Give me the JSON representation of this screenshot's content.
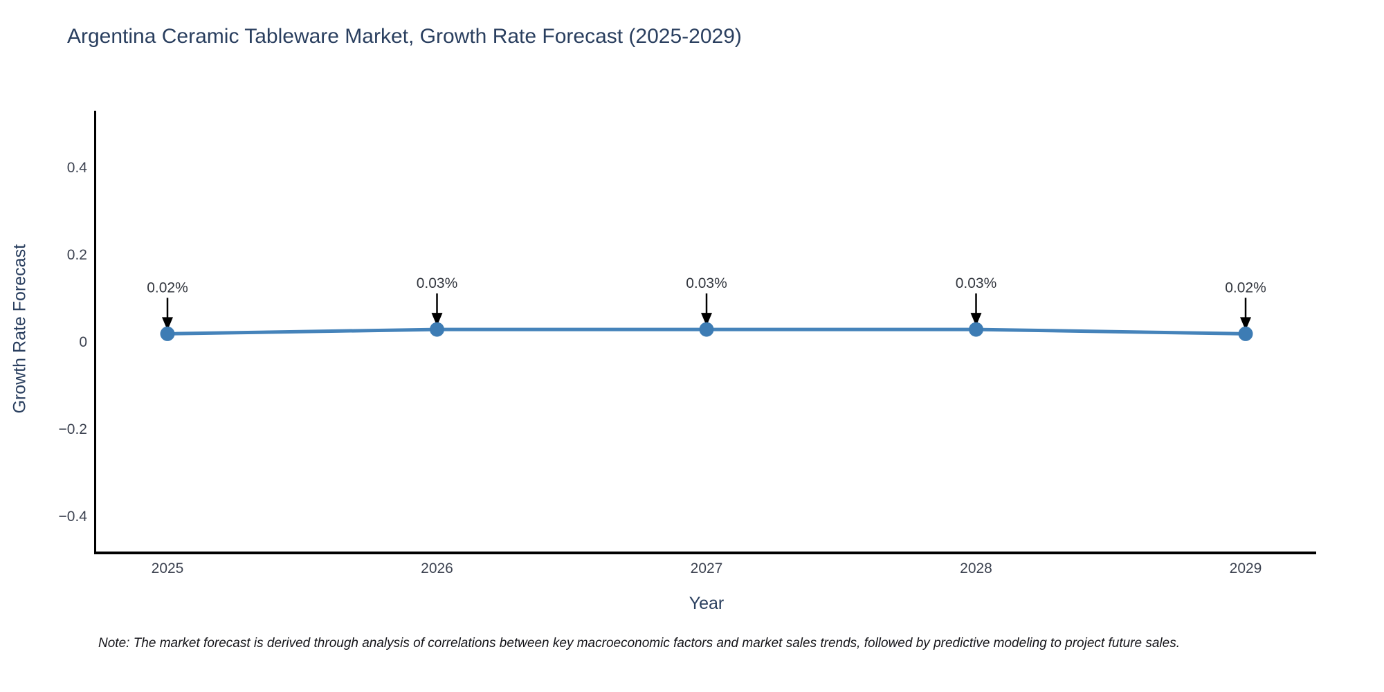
{
  "title": "Argentina Ceramic Tableware Market, Growth Rate Forecast (2025-2029)",
  "note": "Note: The market forecast is derived through analysis of correlations between key macroeconomic factors and market sales trends, followed by predictive modeling to project future sales.",
  "chart_data": {
    "type": "line",
    "title": "Argentina Ceramic Tableware Market, Growth Rate Forecast (2025-2029)",
    "xlabel": "Year",
    "ylabel": "Growth Rate Forecast",
    "categories": [
      "2025",
      "2026",
      "2027",
      "2028",
      "2029"
    ],
    "series": [
      {
        "name": "Growth Rate Forecast",
        "values": [
          0.02,
          0.03,
          0.03,
          0.03,
          0.02
        ],
        "point_labels": [
          "0.02%",
          "0.03%",
          "0.03%",
          "0.03%",
          "0.02%"
        ]
      }
    ],
    "yticks": [
      {
        "label": "0.4",
        "value": 0.4
      },
      {
        "label": "0.2",
        "value": 0.2
      },
      {
        "label": "0",
        "value": 0
      },
      {
        "label": "−0.2",
        "value": -0.2
      },
      {
        "label": "−0.4",
        "value": -0.4
      }
    ],
    "ylim": [
      -0.51,
      0.53
    ],
    "grid": false,
    "legend_position": "none",
    "colors": {
      "line": "#4583ba",
      "marker": "#3d7cb4",
      "annotation_arrow": "#000000",
      "annotation_text": "#33373f",
      "axis": "#000000",
      "title_text": "#2a3f5f",
      "tick_text": "#3c4250"
    }
  }
}
